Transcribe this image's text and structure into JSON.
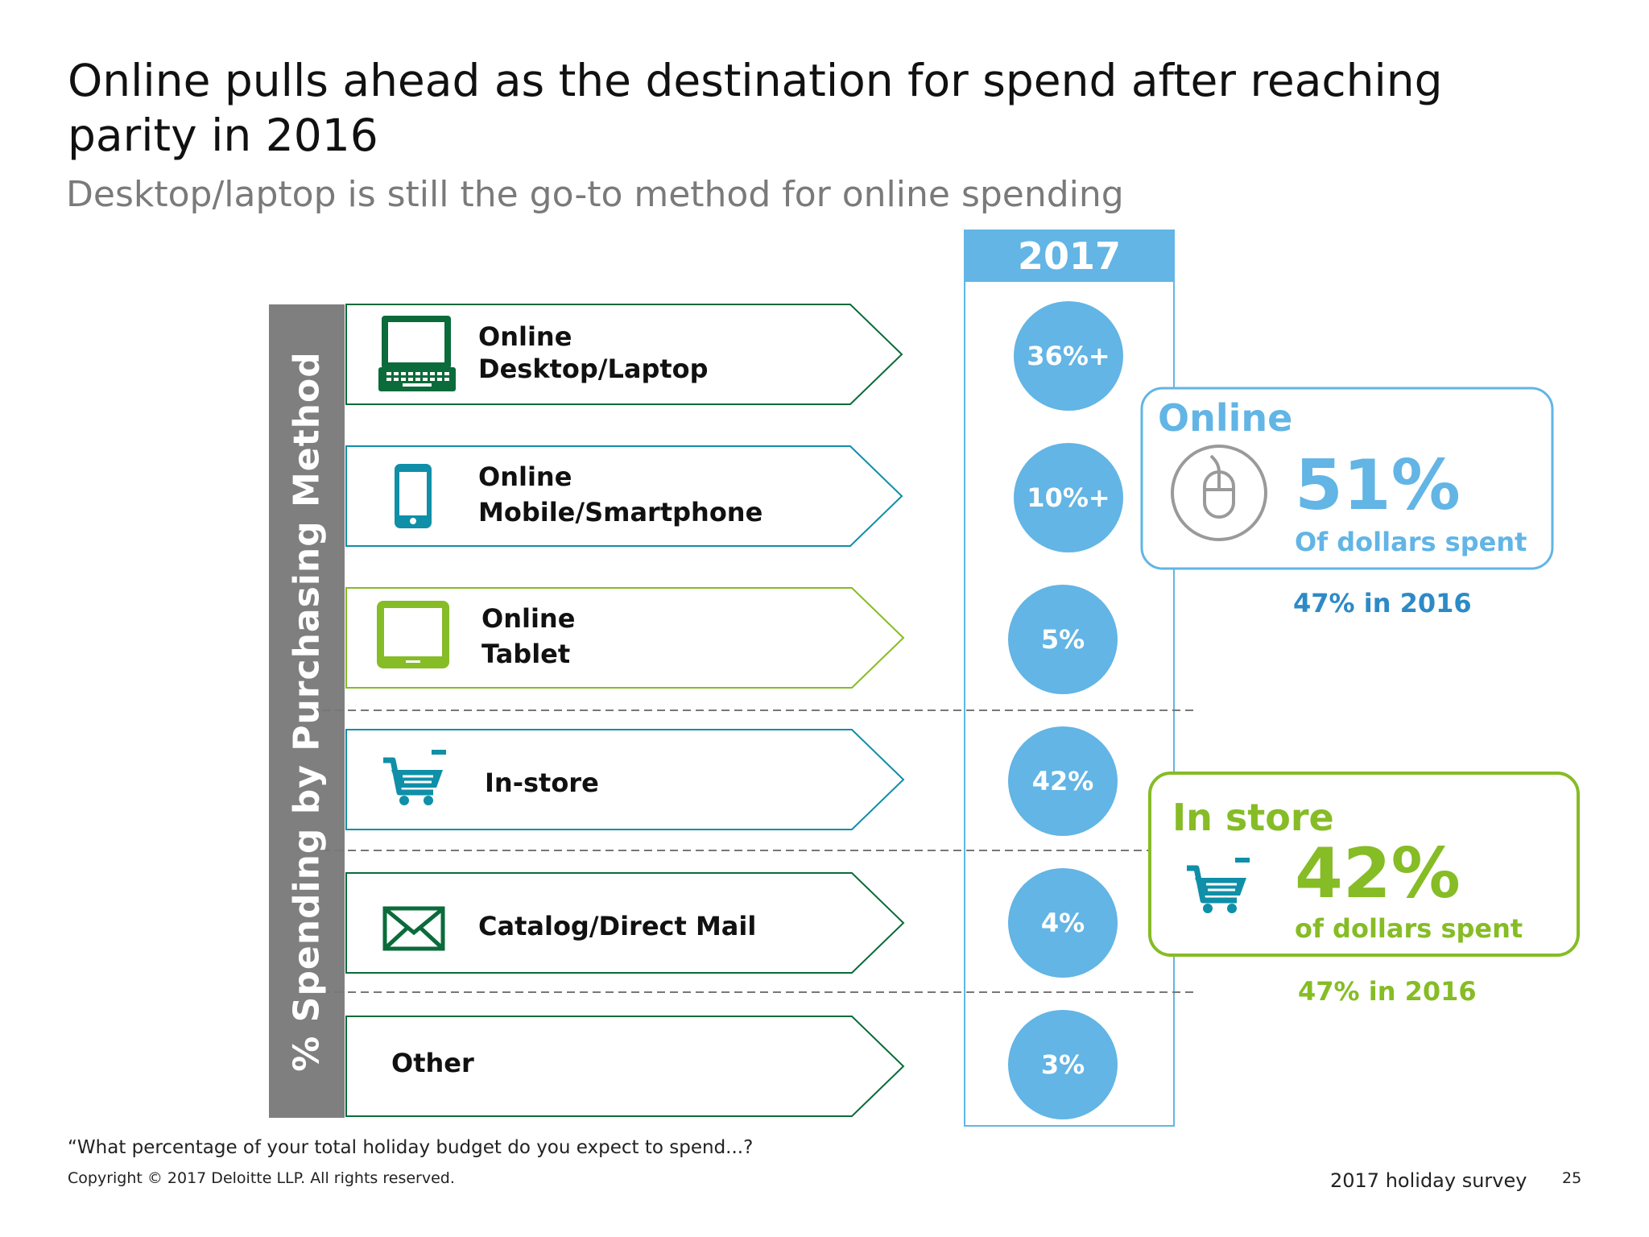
{
  "title": "Online pulls ahead as the destination for spend after reaching parity in 2016",
  "subtitle": "Desktop/laptop is still the go-to method for online spending",
  "side_label": "% Spending  by Purchasing Method",
  "year_header": "2017",
  "rows": [
    {
      "line1": "Online",
      "line2": "Desktop/Laptop",
      "value": "36%+",
      "icon": "laptop-icon",
      "color": "#0b6b3a"
    },
    {
      "line1": "Online",
      "line2": "Mobile/Smartphone",
      "value": "10%+",
      "icon": "smartphone-icon",
      "color": "#0f8fa8"
    },
    {
      "line1": "Online",
      "line2": "Tablet",
      "value": "5%",
      "icon": "tablet-icon",
      "color": "#86bc25"
    },
    {
      "line1": "In-store",
      "line2": "",
      "value": "42%",
      "icon": "shopping-cart-icon",
      "color": "#0f8fa8"
    },
    {
      "line1": "Catalog/Direct Mail",
      "line2": "",
      "value": "4%",
      "icon": "envelope-icon",
      "color": "#0b6b3a"
    },
    {
      "line1": "Other",
      "line2": "",
      "value": "3%",
      "icon": "",
      "color": "#0b6b3a"
    }
  ],
  "online_box": {
    "title": "Online",
    "percent": "51%",
    "caption": "Of dollars spent",
    "prior": "47% in 2016",
    "icon": "mouse-icon",
    "color": "#62b5e5"
  },
  "instore_box": {
    "title": "In store",
    "percent": "42%",
    "caption": "of dollars spent",
    "prior": "47% in 2016",
    "icon": "shopping-cart-icon",
    "color": "#86bc25"
  },
  "footer": {
    "question": "“What percentage of your total holiday budget do you expect to spend...?",
    "copyright": "Copyright © 2017 Deloitte LLP. All rights reserved.",
    "survey": "2017 holiday survey",
    "page": "25"
  },
  "colors": {
    "accent_blue": "#62b5e5",
    "accent_green": "#86bc25",
    "dark_green": "#0b6b3a",
    "teal": "#0f8fa8",
    "side_bar_gray": "#7f7f7f"
  }
}
